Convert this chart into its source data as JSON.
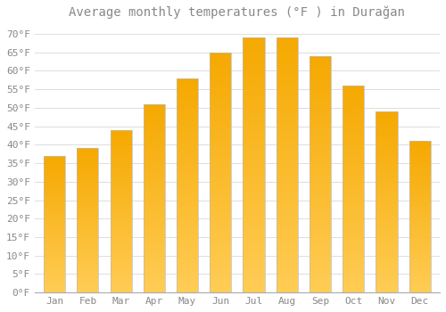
{
  "title": "Average monthly temperatures (°F ) in Durağan",
  "months": [
    "Jan",
    "Feb",
    "Mar",
    "Apr",
    "May",
    "Jun",
    "Jul",
    "Aug",
    "Sep",
    "Oct",
    "Nov",
    "Dec"
  ],
  "values": [
    37,
    39,
    44,
    51,
    58,
    65,
    69,
    69,
    64,
    56,
    49,
    41
  ],
  "bar_color_top": "#F5A800",
  "bar_color_bottom": "#FFCC55",
  "bar_edge_color": "#BBBBBB",
  "background_color": "#FFFFFF",
  "grid_color": "#DDDDDD",
  "ylim": [
    0,
    72
  ],
  "yticks": [
    0,
    5,
    10,
    15,
    20,
    25,
    30,
    35,
    40,
    45,
    50,
    55,
    60,
    65,
    70
  ],
  "title_fontsize": 10,
  "tick_fontsize": 8,
  "bar_width": 0.65
}
